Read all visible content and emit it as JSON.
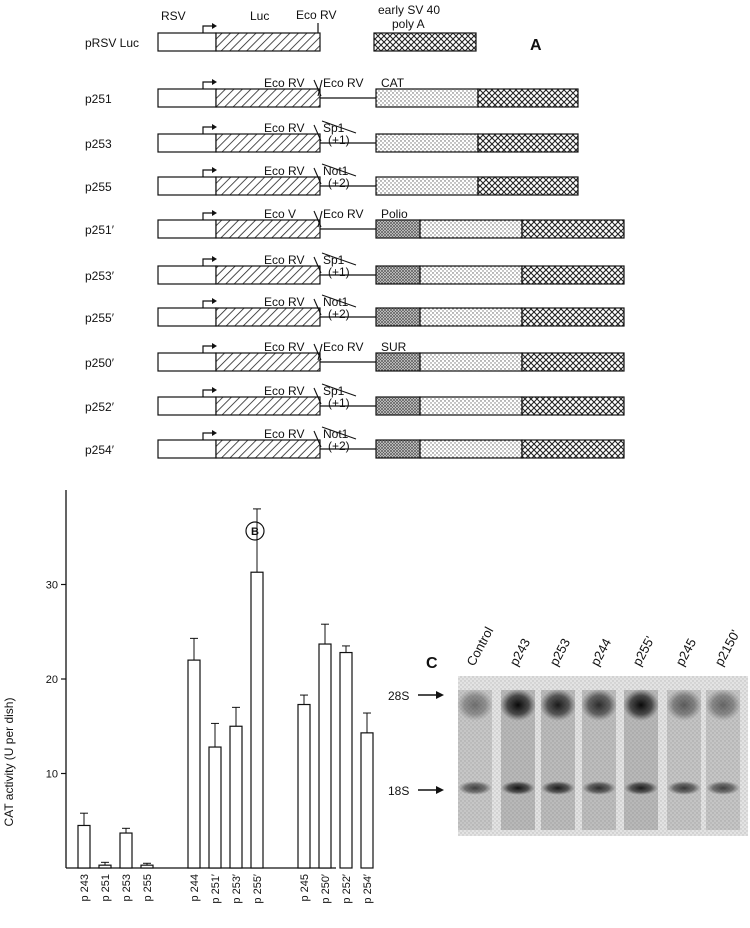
{
  "panel_a": {
    "label": "A",
    "header": {
      "rsv": "RSV",
      "luc": "Luc",
      "ecorv": "Eco RV",
      "early": "early SV 40",
      "polya": "poly A"
    },
    "constructs": [
      {
        "name": "pRSV Luc",
        "type": "parent",
        "labels": [],
        "frame": "",
        "insert": ""
      },
      {
        "name": "p251",
        "type": "cat",
        "labels": [
          "Eco RV",
          "Eco RV",
          "CAT"
        ],
        "frame": "",
        "insert": ""
      },
      {
        "name": "p253",
        "type": "cat",
        "labels": [
          "Eco RV",
          "Sp1"
        ],
        "frame": "(+1)",
        "insert": ""
      },
      {
        "name": "p255",
        "type": "cat",
        "labels": [
          "Eco RV",
          "Not1"
        ],
        "frame": "(+2)",
        "insert": ""
      },
      {
        "name": "p251′",
        "type": "polio",
        "labels": [
          "Eco V",
          "Eco RV",
          "Polio"
        ],
        "frame": "",
        "insert": "polio"
      },
      {
        "name": "p253′",
        "type": "polio",
        "labels": [
          "Eco RV",
          "Sp1"
        ],
        "frame": "(+1)",
        "insert": "polio"
      },
      {
        "name": "p255′",
        "type": "polio",
        "labels": [
          "Eco RV",
          "Not1"
        ],
        "frame": "(+2)",
        "insert": "polio"
      },
      {
        "name": "p250′",
        "type": "sur",
        "labels": [
          "Eco RV",
          "Eco RV",
          "SUR"
        ],
        "frame": "",
        "insert": "sur"
      },
      {
        "name": "p252′",
        "type": "sur",
        "labels": [
          "Eco RV",
          "Sp1"
        ],
        "frame": "(+1)",
        "insert": "sur"
      },
      {
        "name": "p254′",
        "type": "sur",
        "labels": [
          "Eco RV",
          "Not1"
        ],
        "frame": "(+2)",
        "insert": "sur"
      }
    ]
  },
  "chart_data": {
    "type": "bar",
    "panel_label": "B",
    "ylabel": "CAT activity   (U per dish)",
    "xlabel": "",
    "ylim": [
      0,
      40
    ],
    "yticks": [
      10,
      20,
      30
    ],
    "categories": [
      "p 243",
      "p 251",
      "p 253",
      "p 255",
      "p 244",
      "p 251′",
      "p 253′",
      "p 255′",
      "p 245",
      "p 250′",
      "p 252′",
      "p 254′"
    ],
    "values": [
      4.5,
      0.3,
      3.7,
      0.3,
      22,
      12.8,
      15,
      31.3,
      17.3,
      23.7,
      22.8,
      14.3
    ],
    "errors": [
      1.3,
      0.3,
      0.5,
      0.2,
      2.3,
      2.5,
      2.0,
      6.7,
      1.0,
      2.1,
      0.7,
      2.1
    ],
    "groups": [
      [
        0,
        3
      ],
      [
        4,
        7
      ],
      [
        8,
        11
      ]
    ]
  },
  "panel_c": {
    "label": "C",
    "lanes": [
      "Control",
      "p243",
      "p253",
      "p244",
      "p255'",
      "p245",
      "p2150'"
    ],
    "markers": [
      "28S",
      "18S"
    ]
  }
}
